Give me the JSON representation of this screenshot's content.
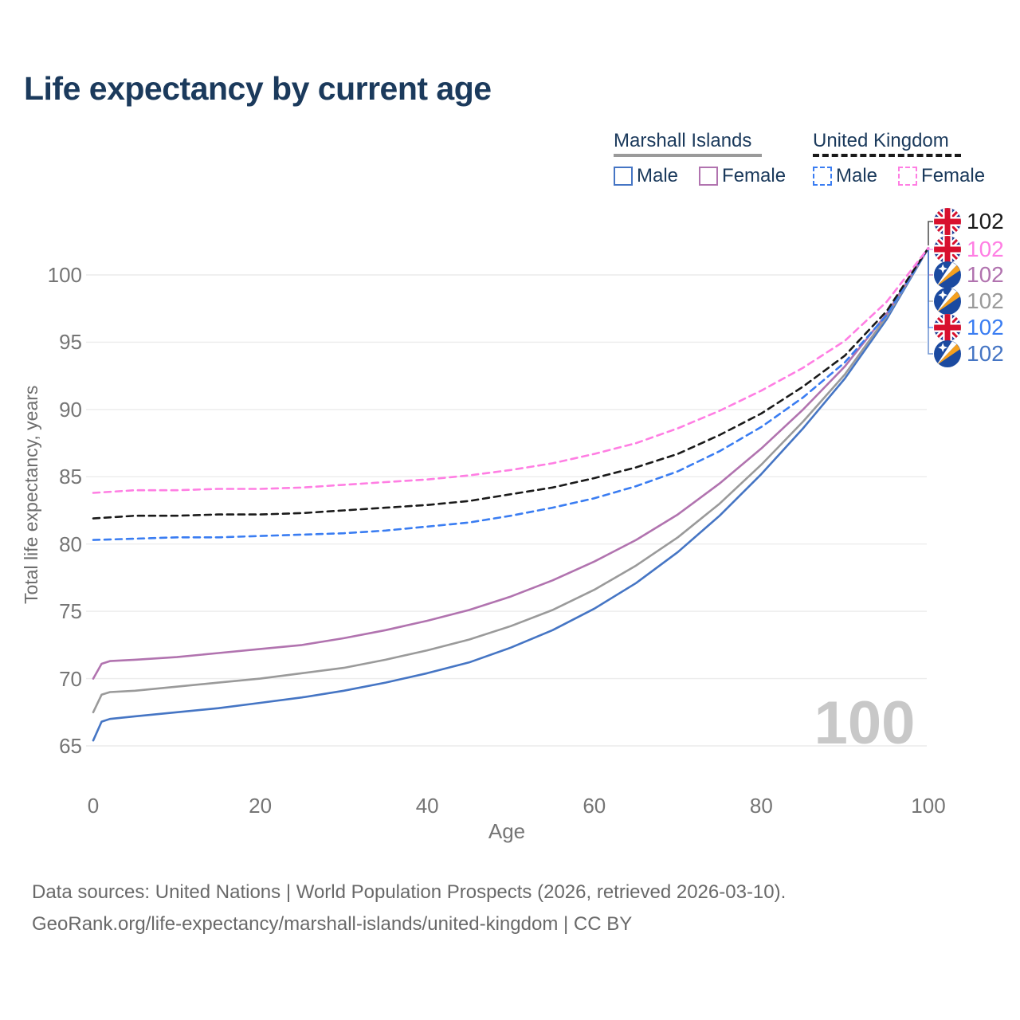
{
  "header": {
    "title": "Life expectancy by current age"
  },
  "legend": {
    "groups": [
      {
        "label": "Marshall Islands",
        "series_ref": "mh_total",
        "items": [
          {
            "label": "Male",
            "series": "mh_male"
          },
          {
            "label": "Female",
            "series": "mh_female"
          }
        ]
      },
      {
        "label": "United Kingdom",
        "series_ref": "uk_total",
        "items": [
          {
            "label": "Male",
            "series": "uk_male"
          },
          {
            "label": "Female",
            "series": "uk_female"
          }
        ]
      }
    ]
  },
  "chart_data": {
    "type": "line",
    "title": "Life expectancy by current age",
    "xlabel": "Age",
    "ylabel": "Total life expectancy, years",
    "xlim": [
      0,
      100
    ],
    "ylim": [
      63.5,
      103.5
    ],
    "xticks": [
      0,
      20,
      40,
      60,
      80,
      100
    ],
    "yticks": [
      65,
      70,
      75,
      80,
      85,
      90,
      95,
      100
    ],
    "grid": true,
    "legend_position": "top-right",
    "watermark": "100",
    "series": [
      {
        "id": "mh_male",
        "name": "Marshall Islands Male",
        "country": "Marshall Islands",
        "sex": "male",
        "color": "#4575c4",
        "dash": "",
        "points": [
          [
            0,
            65.4
          ],
          [
            1,
            66.8
          ],
          [
            2,
            67.0
          ],
          [
            5,
            67.2
          ],
          [
            10,
            67.5
          ],
          [
            15,
            67.8
          ],
          [
            20,
            68.2
          ],
          [
            25,
            68.6
          ],
          [
            30,
            69.1
          ],
          [
            35,
            69.7
          ],
          [
            40,
            70.4
          ],
          [
            45,
            71.2
          ],
          [
            50,
            72.3
          ],
          [
            55,
            73.6
          ],
          [
            60,
            75.2
          ],
          [
            65,
            77.1
          ],
          [
            70,
            79.4
          ],
          [
            75,
            82.1
          ],
          [
            80,
            85.2
          ],
          [
            85,
            88.6
          ],
          [
            90,
            92.3
          ],
          [
            95,
            96.7
          ],
          [
            100,
            102
          ]
        ]
      },
      {
        "id": "mh_total",
        "name": "Marshall Islands Both sexes",
        "country": "Marshall Islands",
        "sex": "total",
        "color": "#9a9a9a",
        "dash": "",
        "points": [
          [
            0,
            67.5
          ],
          [
            1,
            68.8
          ],
          [
            2,
            69.0
          ],
          [
            5,
            69.1
          ],
          [
            10,
            69.4
          ],
          [
            15,
            69.7
          ],
          [
            20,
            70.0
          ],
          [
            25,
            70.4
          ],
          [
            30,
            70.8
          ],
          [
            35,
            71.4
          ],
          [
            40,
            72.1
          ],
          [
            45,
            72.9
          ],
          [
            50,
            73.9
          ],
          [
            55,
            75.1
          ],
          [
            60,
            76.6
          ],
          [
            65,
            78.4
          ],
          [
            70,
            80.5
          ],
          [
            75,
            83.0
          ],
          [
            80,
            85.9
          ],
          [
            85,
            89.1
          ],
          [
            90,
            92.6
          ],
          [
            95,
            96.9
          ],
          [
            100,
            102
          ]
        ]
      },
      {
        "id": "mh_female",
        "name": "Marshall Islands Female",
        "country": "Marshall Islands",
        "sex": "female",
        "color": "#b173af",
        "dash": "",
        "points": [
          [
            0,
            70.0
          ],
          [
            1,
            71.1
          ],
          [
            2,
            71.3
          ],
          [
            5,
            71.4
          ],
          [
            10,
            71.6
          ],
          [
            15,
            71.9
          ],
          [
            20,
            72.2
          ],
          [
            25,
            72.5
          ],
          [
            30,
            73.0
          ],
          [
            35,
            73.6
          ],
          [
            40,
            74.3
          ],
          [
            45,
            75.1
          ],
          [
            50,
            76.1
          ],
          [
            55,
            77.3
          ],
          [
            60,
            78.7
          ],
          [
            65,
            80.3
          ],
          [
            70,
            82.2
          ],
          [
            75,
            84.5
          ],
          [
            80,
            87.1
          ],
          [
            85,
            90.0
          ],
          [
            90,
            93.2
          ],
          [
            95,
            97.1
          ],
          [
            100,
            102
          ]
        ]
      },
      {
        "id": "uk_male",
        "name": "United Kingdom Male",
        "country": "United Kingdom",
        "sex": "male",
        "color": "#3a7df2",
        "dash": "8 6",
        "points": [
          [
            0,
            80.3
          ],
          [
            5,
            80.4
          ],
          [
            10,
            80.5
          ],
          [
            15,
            80.5
          ],
          [
            20,
            80.6
          ],
          [
            25,
            80.7
          ],
          [
            30,
            80.8
          ],
          [
            35,
            81.0
          ],
          [
            40,
            81.3
          ],
          [
            45,
            81.6
          ],
          [
            50,
            82.1
          ],
          [
            55,
            82.7
          ],
          [
            60,
            83.4
          ],
          [
            65,
            84.3
          ],
          [
            70,
            85.4
          ],
          [
            75,
            86.9
          ],
          [
            80,
            88.7
          ],
          [
            85,
            90.9
          ],
          [
            90,
            93.5
          ],
          [
            95,
            97.0
          ],
          [
            100,
            102
          ]
        ]
      },
      {
        "id": "uk_total",
        "name": "United Kingdom Both sexes",
        "country": "United Kingdom",
        "sex": "total",
        "color": "#1a1a1a",
        "dash": "8 6",
        "points": [
          [
            0,
            81.9
          ],
          [
            5,
            82.1
          ],
          [
            10,
            82.1
          ],
          [
            15,
            82.2
          ],
          [
            20,
            82.2
          ],
          [
            25,
            82.3
          ],
          [
            30,
            82.5
          ],
          [
            35,
            82.7
          ],
          [
            40,
            82.9
          ],
          [
            45,
            83.2
          ],
          [
            50,
            83.7
          ],
          [
            55,
            84.2
          ],
          [
            60,
            84.9
          ],
          [
            65,
            85.7
          ],
          [
            70,
            86.7
          ],
          [
            75,
            88.1
          ],
          [
            80,
            89.7
          ],
          [
            85,
            91.7
          ],
          [
            90,
            94.0
          ],
          [
            95,
            97.3
          ],
          [
            100,
            102
          ]
        ]
      },
      {
        "id": "uk_female",
        "name": "United Kingdom Female",
        "country": "United Kingdom",
        "sex": "female",
        "color": "#ff7ee3",
        "dash": "8 6",
        "points": [
          [
            0,
            83.8
          ],
          [
            5,
            84.0
          ],
          [
            10,
            84.0
          ],
          [
            15,
            84.1
          ],
          [
            20,
            84.1
          ],
          [
            25,
            84.2
          ],
          [
            30,
            84.4
          ],
          [
            35,
            84.6
          ],
          [
            40,
            84.8
          ],
          [
            45,
            85.1
          ],
          [
            50,
            85.5
          ],
          [
            55,
            86.0
          ],
          [
            60,
            86.7
          ],
          [
            65,
            87.5
          ],
          [
            70,
            88.6
          ],
          [
            75,
            89.9
          ],
          [
            80,
            91.4
          ],
          [
            85,
            93.1
          ],
          [
            90,
            95.1
          ],
          [
            95,
            98.0
          ],
          [
            100,
            102
          ]
        ]
      }
    ]
  },
  "right_labels": [
    {
      "flag": "uk",
      "value": "102",
      "color": "#1a1a1a",
      "series": "uk_total"
    },
    {
      "flag": "uk",
      "value": "102",
      "color": "#ff7ee3",
      "series": "uk_female"
    },
    {
      "flag": "mh",
      "value": "102",
      "color": "#b173af",
      "series": "mh_female"
    },
    {
      "flag": "mh",
      "value": "102",
      "color": "#9a9a9a",
      "series": "mh_total"
    },
    {
      "flag": "uk",
      "value": "102",
      "color": "#3a7df2",
      "series": "uk_male"
    },
    {
      "flag": "mh",
      "value": "102",
      "color": "#4575c4",
      "series": "mh_male"
    }
  ],
  "colors": {
    "title_text": "#1b3a5c",
    "axis_text": "#757575",
    "gridline": "#ececec",
    "watermark": "#c8c8c8",
    "footer_text": "#696969"
  },
  "footer": {
    "line1": "Data sources: United Nations | World Population Prospects (2026, retrieved 2026-03-10).",
    "line2": "GeoRank.org/life-expectancy/marshall-islands/united-kingdom | CC BY"
  }
}
